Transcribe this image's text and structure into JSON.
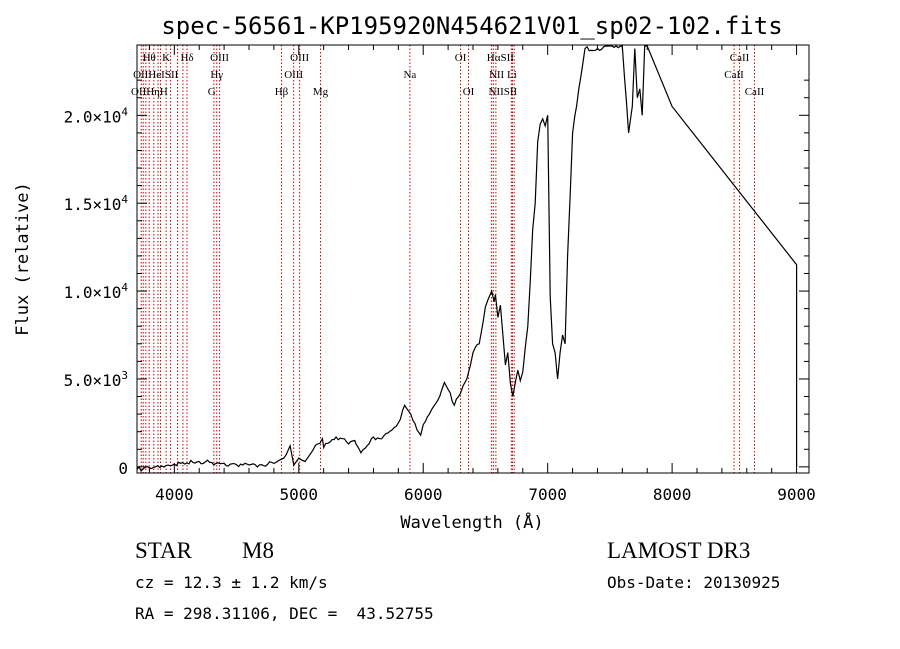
{
  "chart_data": {
    "type": "line",
    "title": "spec-56561-KP195920N454621V01_sp02-102.fits",
    "xlabel": "Wavelength (Å)",
    "ylabel": "Flux (relative)",
    "xlim": [
      3700,
      9100
    ],
    "ylim": [
      -350,
      24000
    ],
    "xticks": [
      4000,
      5000,
      6000,
      7000,
      8000,
      9000
    ],
    "yticks": [
      {
        "value": 0,
        "mant": "0",
        "exp": ""
      },
      {
        "value": 5000,
        "mant": "5.0×10",
        "exp": "3"
      },
      {
        "value": 10000,
        "mant": "1.0×10",
        "exp": "4"
      },
      {
        "value": 15000,
        "mant": "1.5×10",
        "exp": "4"
      },
      {
        "value": 20000,
        "mant": "2.0×10",
        "exp": "4"
      }
    ],
    "series": [
      {
        "name": "flux",
        "x": [
          3700,
          3750,
          3800,
          3850,
          3900,
          3950,
          4000,
          4050,
          4100,
          4150,
          4200,
          4250,
          4300,
          4350,
          4400,
          4450,
          4500,
          4550,
          4600,
          4650,
          4700,
          4750,
          4800,
          4850,
          4880,
          4900,
          4930,
          4960,
          4980,
          5000,
          5020,
          5050,
          5080,
          5100,
          5150,
          5190,
          5200,
          5250,
          5300,
          5350,
          5400,
          5450,
          5460,
          5500,
          5550,
          5600,
          5650,
          5700,
          5750,
          5800,
          5850,
          5870,
          5900,
          5950,
          5980,
          6000,
          6050,
          6100,
          6150,
          6170,
          6200,
          6250,
          6300,
          6320,
          6350,
          6380,
          6400,
          6450,
          6480,
          6500,
          6520,
          6550,
          6560,
          6570,
          6580,
          6600,
          6620,
          6640,
          6660,
          6680,
          6700,
          6720,
          6740,
          6760,
          6780,
          6800,
          6820,
          6840,
          6860,
          6880,
          6900,
          6920,
          6940,
          6960,
          6980,
          7000,
          7020,
          7040,
          7060,
          7080,
          7100,
          7120,
          7140,
          7160,
          7200,
          7300,
          7400,
          7600,
          7650,
          7680,
          7700,
          7720,
          7740,
          7760,
          7780,
          7800,
          8000,
          9000,
          9000
        ],
        "values": [
          -150,
          -100,
          -50,
          0,
          50,
          100,
          150,
          200,
          220,
          250,
          300,
          280,
          250,
          230,
          200,
          150,
          120,
          100,
          110,
          120,
          130,
          150,
          200,
          400,
          500,
          700,
          1200,
          100,
          300,
          500,
          400,
          300,
          600,
          800,
          1300,
          1600,
          1100,
          1400,
          1700,
          1600,
          1300,
          1500,
          1300,
          800,
          1200,
          1700,
          1600,
          1900,
          2100,
          2500,
          3500,
          3300,
          3000,
          2100,
          1800,
          2400,
          3000,
          3600,
          4400,
          4800,
          4400,
          3500,
          4200,
          4600,
          5000,
          5800,
          6500,
          7000,
          8200,
          9100,
          9500,
          10000,
          9700,
          9400,
          9800,
          8500,
          9200,
          7500,
          5800,
          6500,
          4800,
          4000,
          4800,
          5500,
          4900,
          5400,
          6800,
          8000,
          10500,
          13500,
          15000,
          18500,
          19500,
          19800,
          19400,
          20000,
          9700,
          7000,
          6500,
          5000,
          6500,
          7500,
          7000,
          12000,
          19000,
          23800,
          23800,
          24000,
          19000,
          20500,
          23800,
          21000,
          21500,
          20000,
          24000,
          24000,
          20500,
          11500,
          0
        ]
      }
    ],
    "line_marks": {
      "x": [
        3734,
        3750,
        3771,
        3798,
        3835,
        3869,
        3889,
        3934,
        3970,
        4026,
        4069,
        4102,
        4318,
        4341,
        4364,
        4861,
        4959,
        5007,
        5175,
        5893,
        6300,
        6364,
        6548,
        6563,
        6584,
        6708,
        6717,
        6731,
        8498,
        8542,
        8662
      ],
      "color": "#cc0000"
    },
    "line_labels": {
      "top": [
        {
          "text": "Hθ",
          "x": 3798
        },
        {
          "text": "K",
          "x": 3934
        },
        {
          "text": "Hδ",
          "x": 4102
        },
        {
          "text": "OIII",
          "x": 4364
        },
        {
          "text": "OIII",
          "x": 5007
        },
        {
          "text": "OI",
          "x": 6300
        },
        {
          "text": "HαSII",
          "x": 6620
        },
        {
          "text": "CaII",
          "x": 8542
        }
      ],
      "mid": [
        {
          "text": "OIIHeISII",
          "x": 3850
        },
        {
          "text": "Hγ",
          "x": 4341
        },
        {
          "text": "OIII",
          "x": 4959
        },
        {
          "text": "Na",
          "x": 5893
        },
        {
          "text": "NII Li",
          "x": 6640
        },
        {
          "text": "CaII",
          "x": 8498
        }
      ],
      "low": [
        {
          "text": "OIIHηH",
          "x": 3800
        },
        {
          "text": "G",
          "x": 4300
        },
        {
          "text": "Hβ",
          "x": 4861
        },
        {
          "text": "Mg",
          "x": 5175
        },
        {
          "text": "OI",
          "x": 6364
        },
        {
          "text": "NIISII",
          "x": 6640
        },
        {
          "text": "CaII",
          "x": 8662
        }
      ]
    }
  },
  "info": {
    "class_label": "STAR",
    "subclass": "M8",
    "survey": "LAMOST DR3",
    "cz": "cz = 12.3 ± 1.2 km/s",
    "obs_date": "Obs-Date: 20130925",
    "radec": "RA = 298.31106, DEC =  43.52755"
  }
}
